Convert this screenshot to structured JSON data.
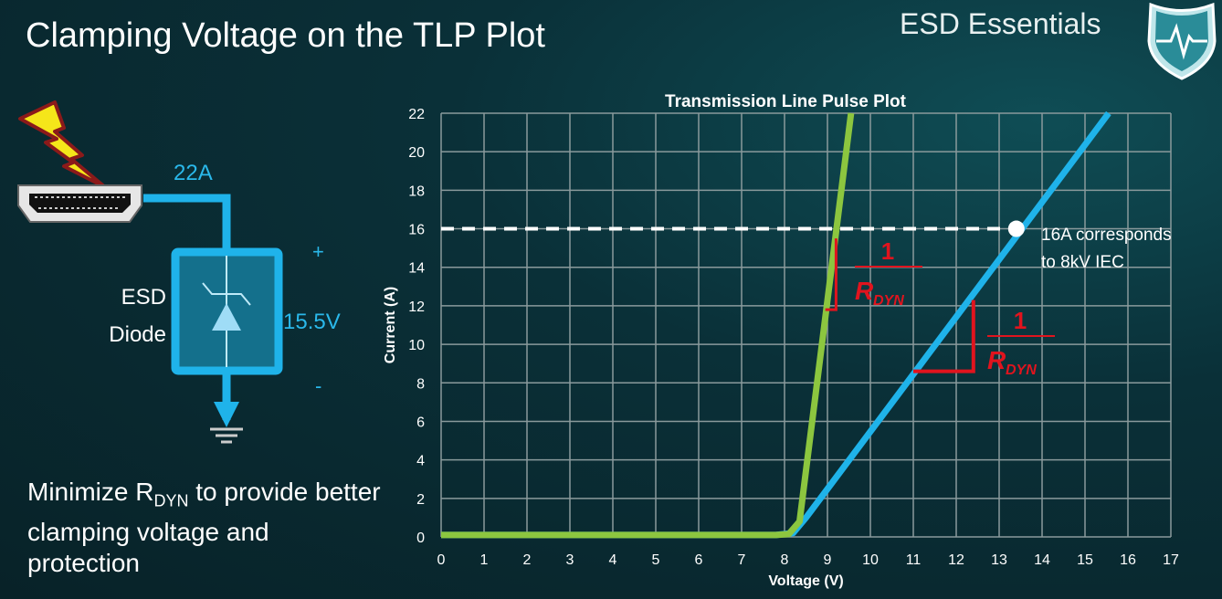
{
  "slide": {
    "title": "Clamping Voltage on the TLP Plot",
    "brand": "ESD Essentials"
  },
  "diagram": {
    "current": "22A",
    "voltage": "15.5V",
    "plus": "+",
    "minus": "-",
    "device_label_1": "ESD",
    "device_label_2": "Diode",
    "icons": [
      "lightning-icon",
      "hdmi-port-icon",
      "tvs-diode-icon",
      "ground-icon"
    ]
  },
  "bullet": {
    "pre": "Minimize R",
    "sub": "DYN",
    "post": " to provide better clamping voltage and protection"
  },
  "chart_data": {
    "type": "line",
    "title": "Transmission Line Pulse Plot",
    "xlabel": "Voltage (V)",
    "ylabel": "Current (A)",
    "xlim": [
      0,
      17
    ],
    "ylim": [
      0,
      22
    ],
    "xticks": [
      "0",
      "1",
      "2",
      "3",
      "4",
      "5",
      "6",
      "7",
      "8",
      "9",
      "10",
      "11",
      "12",
      "13",
      "14",
      "15",
      "16",
      "17"
    ],
    "yticks": [
      "0",
      "2",
      "4",
      "6",
      "8",
      "10",
      "12",
      "14",
      "16",
      "18",
      "20",
      "22"
    ],
    "grid": true,
    "series": [
      {
        "color": "#8cc63f",
        "points": [
          [
            0,
            0.1
          ],
          [
            7.8,
            0.1
          ],
          [
            8.1,
            0.15
          ],
          [
            8.35,
            0.8
          ],
          [
            9.55,
            22
          ]
        ]
      },
      {
        "color": "#1fb3ea",
        "points": [
          [
            0,
            0.1
          ],
          [
            7.8,
            0.1
          ],
          [
            8.2,
            0.2
          ],
          [
            8.5,
            1
          ],
          [
            15.55,
            22
          ]
        ]
      }
    ],
    "reference_line": {
      "y": 16,
      "x_end": 13.4,
      "style": "dashed",
      "color": "#ffffff"
    },
    "marker": {
      "x": 13.4,
      "y": 16
    },
    "annotation": {
      "line1": "16A corresponds",
      "line2": "to 8kV IEC"
    },
    "slope_labels": [
      {
        "num": "1",
        "den": "R",
        "den_sub": "DYN",
        "color": "#e0141e"
      },
      {
        "num": "1",
        "den": "R",
        "den_sub": "DYN",
        "color": "#e0141e"
      }
    ]
  }
}
